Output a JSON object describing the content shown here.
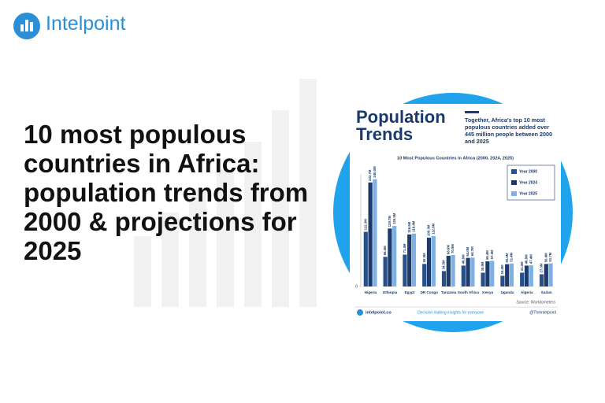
{
  "brand": "Intelpoint",
  "headline": "10 most populous countries in Africa: population trends from 2000 & projections for 2025",
  "card": {
    "heading": "Population Trends",
    "blurb": "Together, Africa's top 10 most populous countries added over 445 million people between 2000 and 2025",
    "source": "Source: Worldometers",
    "site": "intelpoint.co",
    "tagline": "Decision making insights for everyone",
    "handle": "@Theintelpoint"
  },
  "chart_data": {
    "type": "bar",
    "title": "10 Most Populous Countries in Africa (2000, 2024, 2025)",
    "categories": [
      "Nigeria",
      "Ethiopia",
      "Egypt",
      "DR Congo",
      "Tanzania",
      "South Africa",
      "Kenya",
      "Uganda",
      "Algeria",
      "Sudan"
    ],
    "series": [
      {
        "name": "Year 2000",
        "color": "#27508a",
        "values": [
          122.3,
          66.4,
          71.4,
          50.5,
          34.5,
          46.8,
          30.9,
          24.0,
          31.0,
          27.3
        ],
        "value_labels": [
          "122.3M",
          "66.4M",
          "71.4M",
          "50.5M",
          "34.5M",
          "46.8M",
          "30.9M",
          "24.0M",
          "31.0M",
          "27.3M"
        ]
      },
      {
        "name": "Year 2024",
        "color": "#1c3a6a",
        "values": [
          232.7,
          129.7,
          116.5,
          109.3,
          68.6,
          64.0,
          56.4,
          50.0,
          46.8,
          50.4
        ],
        "value_labels": [
          "232.7M",
          "129.7M",
          "116.5M",
          "109.3M",
          "68.6M",
          "64.0M",
          "56.4M",
          "50.0M",
          "46.8M",
          "50.4M"
        ]
      },
      {
        "name": "Year 2025",
        "color": "#7fb0e3",
        "values": [
          240.0,
          135.5,
          118.4,
          112.8,
          70.5,
          64.7,
          57.5,
          51.4,
          47.4,
          51.7
        ],
        "value_labels": [
          "240.0M",
          "135.5M",
          "118.4M",
          "112.8M",
          "70.5M",
          "64.7M",
          "57.5M",
          "51.4M",
          "47.4M",
          "51.7M"
        ]
      }
    ],
    "ylim": [
      0,
      250
    ],
    "yticks": [
      0
    ],
    "legend": "top-right"
  }
}
